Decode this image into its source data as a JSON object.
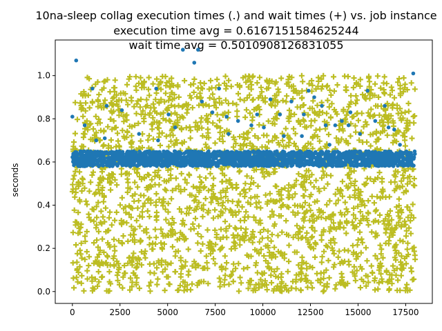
{
  "chart_data": {
    "type": "scatter",
    "title_lines": [
      "10na-sleep collag execution times (.) and wait times (+) vs. job instance",
      "execution time avg = 0.6167151584625244",
      "wait time avg = 0.5010908126831055"
    ],
    "xlabel": "",
    "ylabel": "seconds",
    "xlim": [
      -900,
      18900
    ],
    "ylim": [
      -0.055,
      1.165
    ],
    "xticks": [
      0,
      2500,
      5000,
      7500,
      10000,
      12500,
      15000,
      17500
    ],
    "xtick_labels": [
      "0",
      "2500",
      "5000",
      "7500",
      "10000",
      "12500",
      "15000",
      "17500"
    ],
    "yticks": [
      0.0,
      0.2,
      0.4,
      0.6,
      0.8,
      1.0
    ],
    "ytick_labels": [
      "0.0",
      "0.2",
      "0.4",
      "0.6",
      "0.8",
      "1.0"
    ],
    "grid": false,
    "series": [
      {
        "marker": "dot",
        "color": "#1f77b4",
        "x_range": [
          0,
          18000
        ],
        "typical_band": [
          0.58,
          0.65
        ],
        "outliers": [
          [
            0,
            0.81
          ],
          [
            200,
            1.07
          ],
          [
            650,
            0.77
          ],
          [
            1050,
            0.94
          ],
          [
            1250,
            0.7
          ],
          [
            1700,
            0.71
          ],
          [
            1800,
            0.86
          ],
          [
            2600,
            0.84
          ],
          [
            3500,
            0.73
          ],
          [
            4050,
            0.65
          ],
          [
            4400,
            0.94
          ],
          [
            4500,
            0.7
          ],
          [
            5050,
            0.82
          ],
          [
            5400,
            0.76
          ],
          [
            5800,
            1.12
          ],
          [
            6400,
            1.06
          ],
          [
            6600,
            1.12
          ],
          [
            6800,
            0.88
          ],
          [
            7350,
            0.83
          ],
          [
            7700,
            0.94
          ],
          [
            8100,
            0.81
          ],
          [
            8200,
            0.73
          ],
          [
            8700,
            0.79
          ],
          [
            9400,
            0.77
          ],
          [
            9700,
            0.82
          ],
          [
            10050,
            0.76
          ],
          [
            10400,
            0.89
          ],
          [
            10900,
            0.82
          ],
          [
            11100,
            0.72
          ],
          [
            11500,
            0.88
          ],
          [
            12050,
            0.72
          ],
          [
            12150,
            0.82
          ],
          [
            12400,
            0.93
          ],
          [
            12700,
            0.9
          ],
          [
            13100,
            0.86
          ],
          [
            13300,
            0.77
          ],
          [
            13500,
            0.68
          ],
          [
            13800,
            0.77
          ],
          [
            14150,
            0.79
          ],
          [
            14500,
            0.77
          ],
          [
            14600,
            0.83
          ],
          [
            15100,
            0.73
          ],
          [
            15500,
            0.93
          ],
          [
            15900,
            0.79
          ],
          [
            16400,
            0.86
          ],
          [
            16600,
            0.76
          ],
          [
            16900,
            0.75
          ],
          [
            17200,
            0.68
          ],
          [
            17900,
            1.01
          ]
        ]
      },
      {
        "marker": "plus",
        "color": "#bcbd22",
        "x_range": [
          0,
          18000
        ],
        "y_range": [
          0.0,
          1.0
        ],
        "distribution": "uniform"
      }
    ]
  }
}
